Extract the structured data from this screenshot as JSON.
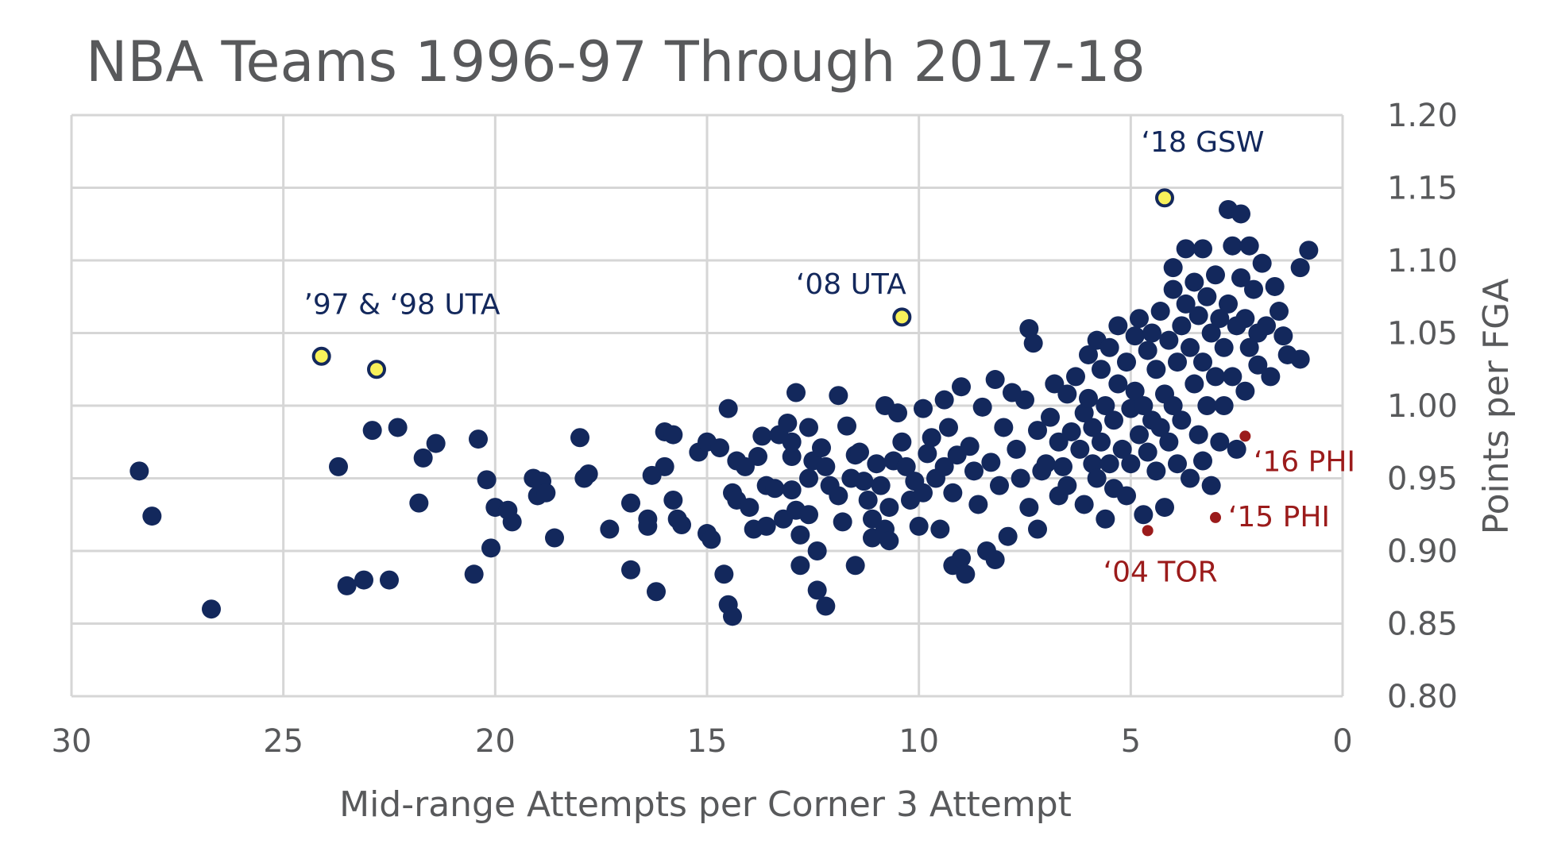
{
  "chart_data": {
    "type": "scatter",
    "title": "NBA Teams 1996-97 Through 2017-18",
    "xlabel": "Mid-range Attempts per Corner 3 Attempt",
    "ylabel": "Points per FGA",
    "xlim": [
      30,
      0
    ],
    "ylim": [
      0.8,
      1.2
    ],
    "x_reversed": true,
    "x_ticks": [
      "30",
      "25",
      "20",
      "15",
      "10",
      "5",
      "0"
    ],
    "y_ticks": [
      "0.80",
      "0.85",
      "0.90",
      "0.95",
      "1.00",
      "1.05",
      "1.10",
      "1.15",
      "1.20"
    ],
    "grid": true,
    "y_axis_side": "right",
    "colors": {
      "main": "#13285c",
      "highlight": "#f8f15a",
      "low": "#9b1b1b",
      "grid": "#d6d6d6",
      "text": "#58595b",
      "label_main": "#13285c",
      "label_low": "#9b1b1b"
    },
    "series": [
      {
        "role": "main",
        "points": [
          [
            28.4,
            0.955
          ],
          [
            28.1,
            0.924
          ],
          [
            26.7,
            0.86
          ],
          [
            23.7,
            0.958
          ],
          [
            23.5,
            0.876
          ],
          [
            23.1,
            0.88
          ],
          [
            22.9,
            0.983
          ],
          [
            22.5,
            0.88
          ],
          [
            22.3,
            0.985
          ],
          [
            21.8,
            0.933
          ],
          [
            21.7,
            0.964
          ],
          [
            21.4,
            0.974
          ],
          [
            20.5,
            0.884
          ],
          [
            20.4,
            0.977
          ],
          [
            20.2,
            0.949
          ],
          [
            20.1,
            0.902
          ],
          [
            20.0,
            0.93
          ],
          [
            19.7,
            0.928
          ],
          [
            19.6,
            0.92
          ],
          [
            19.1,
            0.95
          ],
          [
            19.0,
            0.938
          ],
          [
            18.9,
            0.948
          ],
          [
            18.8,
            0.94
          ],
          [
            18.6,
            0.909
          ],
          [
            18.0,
            0.978
          ],
          [
            17.9,
            0.95
          ],
          [
            17.8,
            0.953
          ],
          [
            17.3,
            0.915
          ],
          [
            16.8,
            0.933
          ],
          [
            16.8,
            0.887
          ],
          [
            16.4,
            0.922
          ],
          [
            16.4,
            0.917
          ],
          [
            16.3,
            0.952
          ],
          [
            16.2,
            0.872
          ],
          [
            16.0,
            0.982
          ],
          [
            16.0,
            0.958
          ],
          [
            15.8,
            0.98
          ],
          [
            15.8,
            0.935
          ],
          [
            15.7,
            0.922
          ],
          [
            15.6,
            0.918
          ],
          [
            15.2,
            0.968
          ],
          [
            15.0,
            0.975
          ],
          [
            15.0,
            0.912
          ],
          [
            14.9,
            0.908
          ],
          [
            14.7,
            0.971
          ],
          [
            14.6,
            0.884
          ],
          [
            14.5,
            0.998
          ],
          [
            14.5,
            0.863
          ],
          [
            14.4,
            0.94
          ],
          [
            14.4,
            0.855
          ],
          [
            14.3,
            0.962
          ],
          [
            14.3,
            0.935
          ],
          [
            14.1,
            0.958
          ],
          [
            14.0,
            0.93
          ],
          [
            13.9,
            0.915
          ],
          [
            13.8,
            0.965
          ],
          [
            13.7,
            0.979
          ],
          [
            13.6,
            0.917
          ],
          [
            13.6,
            0.945
          ],
          [
            13.4,
            0.943
          ],
          [
            13.3,
            0.98
          ],
          [
            13.2,
            0.922
          ],
          [
            13.1,
            0.988
          ],
          [
            13.0,
            0.965
          ],
          [
            13.0,
            0.975
          ],
          [
            13.0,
            0.942
          ],
          [
            12.9,
            1.009
          ],
          [
            12.9,
            0.928
          ],
          [
            12.8,
            0.911
          ],
          [
            12.8,
            0.89
          ],
          [
            12.6,
            0.985
          ],
          [
            12.6,
            0.925
          ],
          [
            12.6,
            0.95
          ],
          [
            12.5,
            0.962
          ],
          [
            12.4,
            0.873
          ],
          [
            12.4,
            0.9
          ],
          [
            12.3,
            0.971
          ],
          [
            12.2,
            0.958
          ],
          [
            12.2,
            0.862
          ],
          [
            12.1,
            0.945
          ],
          [
            11.9,
            1.007
          ],
          [
            11.9,
            0.938
          ],
          [
            11.8,
            0.92
          ],
          [
            11.7,
            0.986
          ],
          [
            11.6,
            0.95
          ],
          [
            11.5,
            0.966
          ],
          [
            11.5,
            0.89
          ],
          [
            11.4,
            0.968
          ],
          [
            11.3,
            0.948
          ],
          [
            11.2,
            0.935
          ],
          [
            11.1,
            0.922
          ],
          [
            11.1,
            0.909
          ],
          [
            11.0,
            0.96
          ],
          [
            10.9,
            0.945
          ],
          [
            10.8,
            1.0
          ],
          [
            10.8,
            0.915
          ],
          [
            10.7,
            0.93
          ],
          [
            10.7,
            0.907
          ],
          [
            10.6,
            0.962
          ],
          [
            10.5,
            0.995
          ],
          [
            10.4,
            0.975
          ],
          [
            10.3,
            0.958
          ],
          [
            10.2,
            0.935
          ],
          [
            10.1,
            0.948
          ],
          [
            10.0,
            0.917
          ],
          [
            9.9,
            0.998
          ],
          [
            9.9,
            0.94
          ],
          [
            9.8,
            0.967
          ],
          [
            9.7,
            0.978
          ],
          [
            9.6,
            0.95
          ],
          [
            9.5,
            0.915
          ],
          [
            9.4,
            1.004
          ],
          [
            9.4,
            0.958
          ],
          [
            9.3,
            0.985
          ],
          [
            9.2,
            0.94
          ],
          [
            9.2,
            0.89
          ],
          [
            9.1,
            0.966
          ],
          [
            9.0,
            1.013
          ],
          [
            9.0,
            0.895
          ],
          [
            8.9,
            0.884
          ],
          [
            8.8,
            0.972
          ],
          [
            8.7,
            0.955
          ],
          [
            8.6,
            0.932
          ],
          [
            8.5,
            0.999
          ],
          [
            8.4,
            0.9
          ],
          [
            8.3,
            0.961
          ],
          [
            8.2,
            1.018
          ],
          [
            8.2,
            0.894
          ],
          [
            8.1,
            0.945
          ],
          [
            8.0,
            0.985
          ],
          [
            7.9,
            0.91
          ],
          [
            7.8,
            1.009
          ],
          [
            7.7,
            0.97
          ],
          [
            7.6,
            0.95
          ],
          [
            7.5,
            1.004
          ],
          [
            7.4,
            0.93
          ],
          [
            7.4,
            1.053
          ],
          [
            7.3,
            1.043
          ],
          [
            7.2,
            0.983
          ],
          [
            7.2,
            0.915
          ],
          [
            7.1,
            0.955
          ],
          [
            7.0,
            0.96
          ],
          [
            6.9,
            0.992
          ],
          [
            6.8,
            1.015
          ],
          [
            6.7,
            0.938
          ],
          [
            6.7,
            0.975
          ],
          [
            6.6,
            0.958
          ],
          [
            6.5,
            1.008
          ],
          [
            6.5,
            0.945
          ],
          [
            6.4,
            0.982
          ],
          [
            6.3,
            1.02
          ],
          [
            6.2,
            0.97
          ],
          [
            6.1,
            0.932
          ],
          [
            6.1,
            0.995
          ],
          [
            6.0,
            1.035
          ],
          [
            6.0,
            1.005
          ],
          [
            5.9,
            0.96
          ],
          [
            5.9,
            0.985
          ],
          [
            5.8,
            1.045
          ],
          [
            5.8,
            0.95
          ],
          [
            5.7,
            1.025
          ],
          [
            5.7,
            0.975
          ],
          [
            5.6,
            0.922
          ],
          [
            5.6,
            1.0
          ],
          [
            5.5,
            1.04
          ],
          [
            5.5,
            0.96
          ],
          [
            5.4,
            0.99
          ],
          [
            5.4,
            0.943
          ],
          [
            5.3,
            1.055
          ],
          [
            5.3,
            1.015
          ],
          [
            5.2,
            0.97
          ],
          [
            5.1,
            1.03
          ],
          [
            5.1,
            0.938
          ],
          [
            5.0,
            0.998
          ],
          [
            5.0,
            0.96
          ],
          [
            4.9,
            1.048
          ],
          [
            4.9,
            1.01
          ],
          [
            4.8,
            0.98
          ],
          [
            4.8,
            1.06
          ],
          [
            4.7,
            0.925
          ],
          [
            4.7,
            1.0
          ],
          [
            4.6,
            1.038
          ],
          [
            4.6,
            0.968
          ],
          [
            4.5,
            1.05
          ],
          [
            4.5,
            0.99
          ],
          [
            4.4,
            1.025
          ],
          [
            4.4,
            0.955
          ],
          [
            4.3,
            0.985
          ],
          [
            4.3,
            1.065
          ],
          [
            4.2,
            1.008
          ],
          [
            4.2,
            0.93
          ],
          [
            4.1,
            1.045
          ],
          [
            4.1,
            0.975
          ],
          [
            4.0,
            1.095
          ],
          [
            4.0,
            1.08
          ],
          [
            4.0,
            1.0
          ],
          [
            3.9,
            1.03
          ],
          [
            3.9,
            0.96
          ],
          [
            3.8,
            1.055
          ],
          [
            3.8,
            0.99
          ],
          [
            3.7,
            1.108
          ],
          [
            3.7,
            1.07
          ],
          [
            3.6,
            1.04
          ],
          [
            3.6,
            0.95
          ],
          [
            3.5,
            1.085
          ],
          [
            3.5,
            1.015
          ],
          [
            3.4,
            1.062
          ],
          [
            3.4,
            0.98
          ],
          [
            3.3,
            1.108
          ],
          [
            3.3,
            1.03
          ],
          [
            3.3,
            0.962
          ],
          [
            3.2,
            1.075
          ],
          [
            3.2,
            1.0
          ],
          [
            3.1,
            1.05
          ],
          [
            3.1,
            0.945
          ],
          [
            3.0,
            1.09
          ],
          [
            3.0,
            1.02
          ],
          [
            2.9,
            1.06
          ],
          [
            2.9,
            0.975
          ],
          [
            2.8,
            1.04
          ],
          [
            2.8,
            1.0
          ],
          [
            2.7,
            1.135
          ],
          [
            2.7,
            1.07
          ],
          [
            2.6,
            1.11
          ],
          [
            2.6,
            1.02
          ],
          [
            2.5,
            0.97
          ],
          [
            2.5,
            1.055
          ],
          [
            2.4,
            1.132
          ],
          [
            2.4,
            1.088
          ],
          [
            2.3,
            1.01
          ],
          [
            2.3,
            1.06
          ],
          [
            2.2,
            1.11
          ],
          [
            2.2,
            1.04
          ],
          [
            2.1,
            1.08
          ],
          [
            2.0,
            1.028
          ],
          [
            2.0,
            1.05
          ],
          [
            1.9,
            1.098
          ],
          [
            1.8,
            1.055
          ],
          [
            1.7,
            1.02
          ],
          [
            1.6,
            1.082
          ],
          [
            1.5,
            1.065
          ],
          [
            1.4,
            1.048
          ],
          [
            1.3,
            1.035
          ],
          [
            1.0,
            1.095
          ],
          [
            1.0,
            1.032
          ],
          [
            0.8,
            1.107
          ]
        ]
      },
      {
        "role": "highlight",
        "points": [
          [
            24.1,
            1.034
          ],
          [
            22.8,
            1.025
          ],
          [
            10.4,
            1.061
          ],
          [
            4.2,
            1.143
          ]
        ]
      },
      {
        "role": "low",
        "points": [
          [
            4.6,
            0.914
          ],
          [
            3.0,
            0.923
          ],
          [
            2.3,
            0.979
          ]
        ]
      }
    ],
    "annotations": [
      {
        "text": "’97 & ‘98 UTA",
        "x": 22.2,
        "y": 1.063,
        "color": "label_main"
      },
      {
        "text": "‘08 UTA",
        "x": 11.6,
        "y": 1.077,
        "color": "label_main"
      },
      {
        "text": "‘18 GSW",
        "x": 3.3,
        "y": 1.175,
        "color": "label_main"
      },
      {
        "text": "‘16 PHI",
        "x": 0.9,
        "y": 0.955,
        "color": "label_low"
      },
      {
        "text": "‘15 PHI",
        "x": 1.5,
        "y": 0.917,
        "color": "label_low"
      },
      {
        "text": "‘04 TOR",
        "x": 4.3,
        "y": 0.879,
        "color": "label_low"
      }
    ]
  }
}
